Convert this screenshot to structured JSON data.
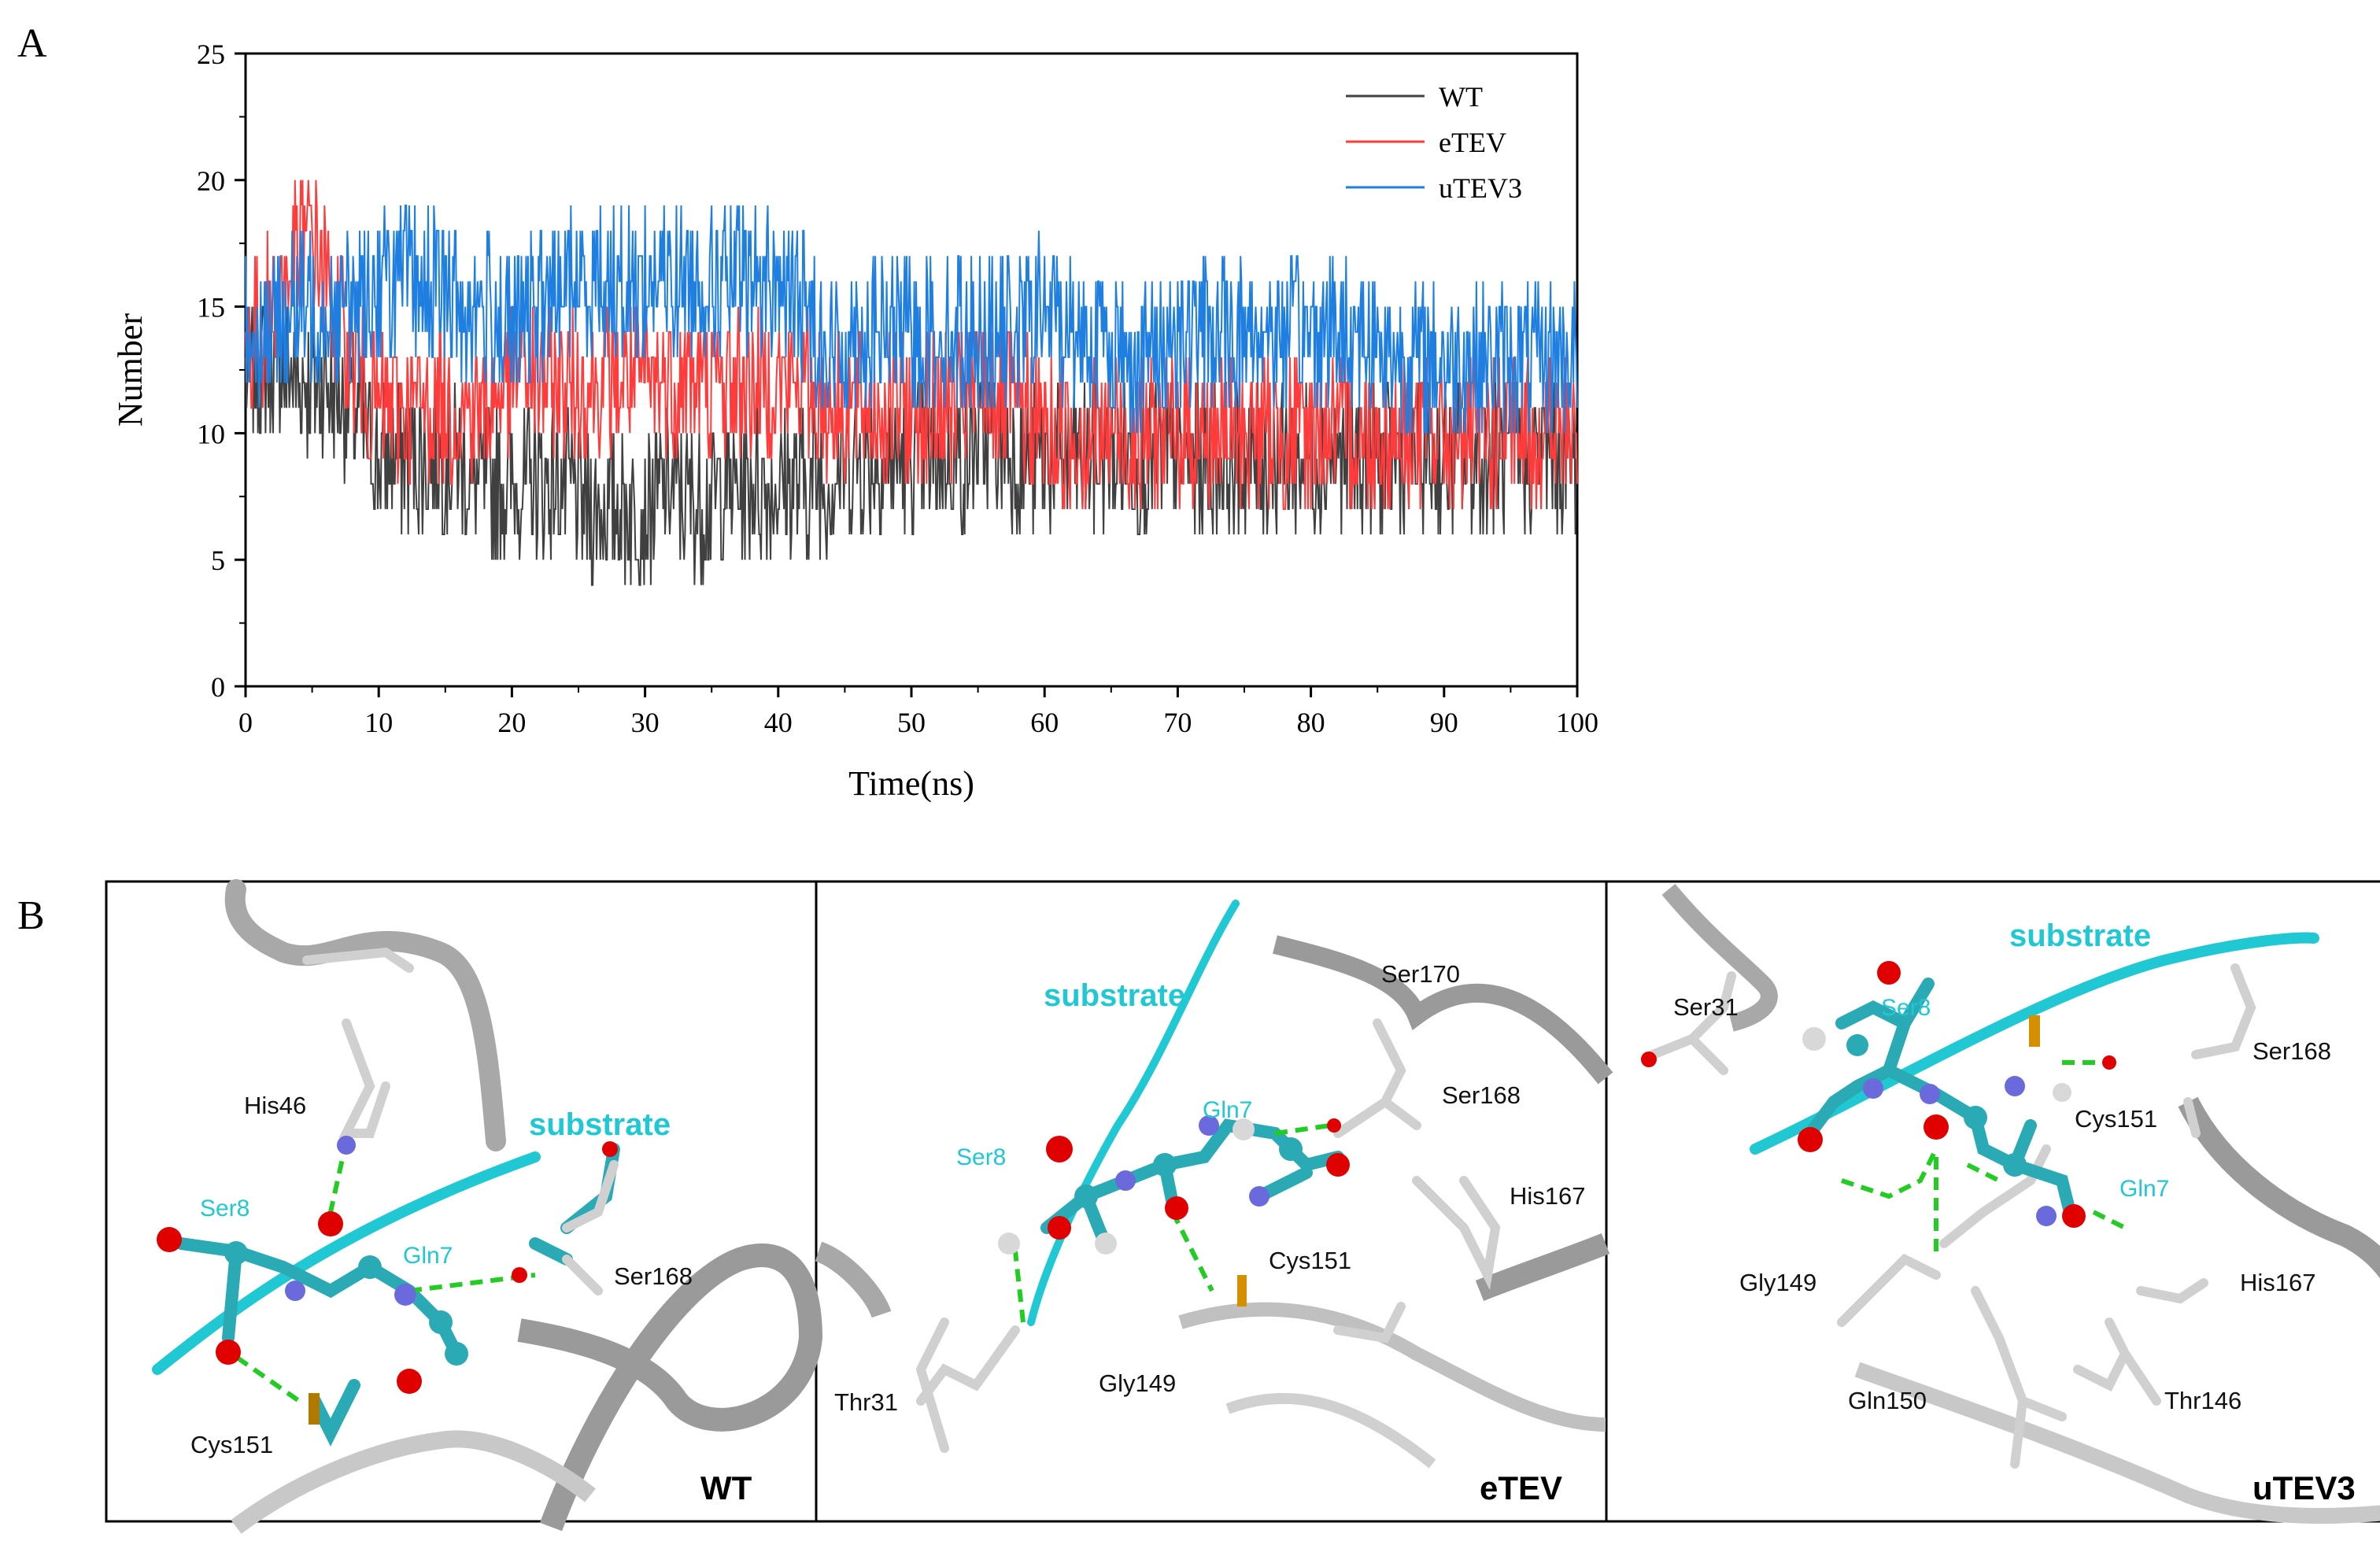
{
  "panel_labels": {
    "a": "A",
    "b": "B"
  },
  "chart_data": {
    "type": "line",
    "title": "",
    "xlabel": "Time(ns)",
    "ylabel": "Number",
    "xlim": [
      0,
      100
    ],
    "ylim": [
      0,
      25
    ],
    "x_ticks": [
      0,
      10,
      20,
      30,
      40,
      50,
      60,
      70,
      80,
      90,
      100
    ],
    "y_ticks": [
      0,
      5,
      10,
      15,
      20,
      25
    ],
    "grid": false,
    "legend": "top-right",
    "series": [
      {
        "name": "WT",
        "color": "#404040",
        "x": [
          0,
          2,
          4,
          6,
          8,
          9,
          10,
          12,
          14,
          16,
          17,
          18,
          20,
          22,
          24,
          26,
          28,
          30,
          32,
          34,
          36,
          38,
          40,
          42,
          44,
          45,
          46,
          48,
          50,
          52,
          54,
          56,
          58,
          60,
          62,
          64,
          66,
          68,
          70,
          72,
          74,
          76,
          78,
          80,
          82,
          84,
          86,
          88,
          90,
          92,
          94,
          96,
          98,
          100
        ],
        "y": [
          12,
          13,
          12,
          12,
          11,
          10,
          9,
          9,
          9,
          9,
          8,
          8,
          8,
          8,
          8,
          7,
          7,
          7,
          8,
          7,
          8,
          8,
          8,
          8,
          8,
          9,
          9,
          9,
          9,
          9,
          9,
          10,
          9,
          9,
          9,
          9,
          9,
          9,
          9,
          9,
          9,
          9,
          9,
          9,
          9,
          9,
          9,
          9,
          9,
          9,
          9,
          9,
          9,
          9
        ]
      },
      {
        "name": "eTEV",
        "color": "#ff3b3b",
        "x": [
          0,
          2,
          4,
          5,
          6,
          8,
          10,
          12,
          14,
          16,
          18,
          20,
          21,
          22,
          24,
          26,
          28,
          30,
          32,
          34,
          36,
          38,
          40,
          42,
          44,
          46,
          48,
          50,
          52,
          54,
          56,
          58,
          60,
          62,
          64,
          66,
          68,
          70,
          72,
          74,
          76,
          78,
          80,
          82,
          84,
          86,
          88,
          90,
          92,
          94,
          96,
          98,
          100
        ],
        "y": [
          13,
          15,
          17,
          18,
          16,
          13,
          11,
          11,
          11,
          11,
          11,
          12,
          13,
          12,
          12,
          12,
          12,
          12,
          12,
          12,
          12,
          12,
          12,
          12,
          11,
          11,
          11,
          11,
          11,
          11,
          12,
          11,
          10,
          10,
          10,
          10,
          10,
          10,
          10,
          10,
          10,
          10,
          10,
          10,
          10,
          10,
          10,
          10,
          10,
          10,
          10,
          10,
          10
        ]
      },
      {
        "name": "uTEV3",
        "color": "#1f7fe0",
        "x": [
          0,
          2,
          4,
          6,
          8,
          10,
          12,
          14,
          16,
          18,
          20,
          22,
          24,
          26,
          28,
          30,
          32,
          34,
          36,
          38,
          40,
          42,
          44,
          46,
          48,
          50,
          52,
          54,
          56,
          58,
          60,
          62,
          64,
          66,
          68,
          70,
          72,
          74,
          76,
          78,
          80,
          82,
          84,
          86,
          88,
          90,
          92,
          94,
          96,
          98,
          100
        ],
        "y": [
          14,
          14,
          15,
          15,
          15,
          16,
          16,
          16,
          15,
          15,
          14,
          15,
          16,
          16,
          16,
          16,
          16,
          16,
          16,
          16,
          16,
          15,
          13,
          14,
          14,
          14,
          14,
          14,
          14,
          14,
          15,
          14,
          14,
          13,
          13,
          14,
          14,
          14,
          14,
          14,
          14,
          14,
          14,
          13,
          13,
          13,
          13,
          13,
          13,
          13,
          13
        ]
      }
    ]
  },
  "panel_b": {
    "views": [
      {
        "tag": "WT",
        "labels": {
          "his46": "His46",
          "substrate": "substrate",
          "ser8": "Ser8",
          "gln7": "Gln7",
          "ser168": "Ser168",
          "cys151": "Cys151"
        }
      },
      {
        "tag": "eTEV",
        "labels": {
          "substrate": "substrate",
          "ser170": "Ser170",
          "gln7": "Gln7",
          "ser168": "Ser168",
          "ser8": "Ser8",
          "his167": "His167",
          "cys151": "Cys151",
          "gly149": "Gly149",
          "thr31": "Thr31"
        }
      },
      {
        "tag": "uTEV3",
        "labels": {
          "substrate": "substrate",
          "ser31": "Ser31",
          "ser8": "Ser8",
          "ser168": "Ser168",
          "cys151": "Cys151",
          "gln7": "Gln7",
          "gly149": "Gly149",
          "his167": "His167",
          "gln150": "Gln150",
          "thr146": "Thr146"
        }
      }
    ]
  },
  "colors": {
    "substrate": "#20c8d4",
    "hbond": "#22cc22",
    "ribbon": "#b8b8b8",
    "oxygen": "#e00000",
    "nitrogen": "#6a6adc",
    "sulfur": "#d49000"
  }
}
